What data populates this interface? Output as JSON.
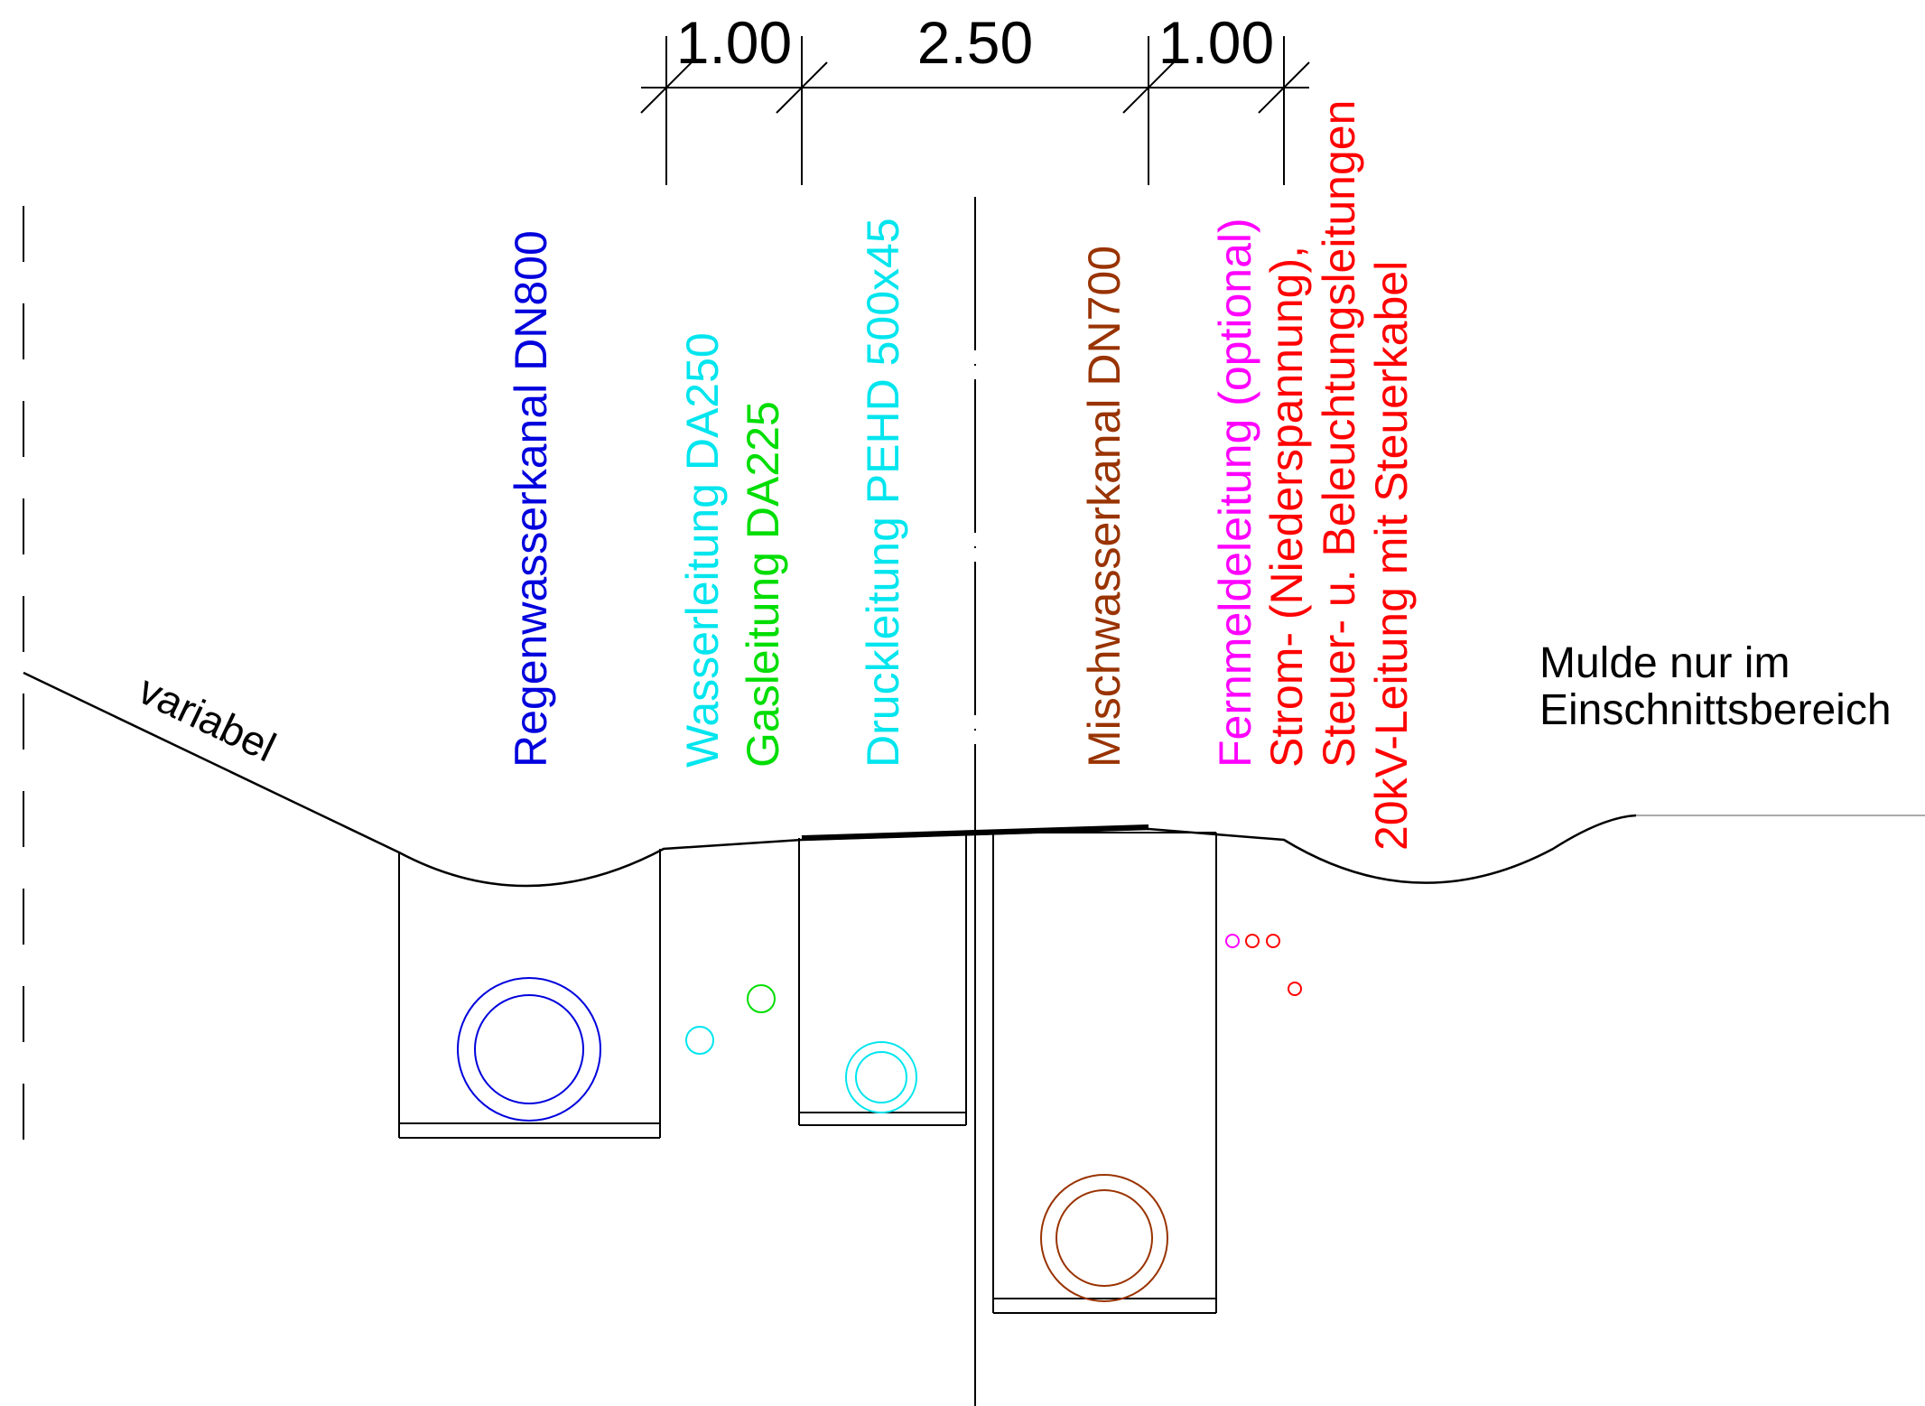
{
  "dimensions": {
    "d1": "1.00",
    "d2": "2.50",
    "d3": "1.00"
  },
  "labels": {
    "regenwasser": "Regenwasserkanal DN800",
    "wasser": "Wasserleitung DA250",
    "gas": "Gasleitung DA225",
    "druck": "Druckleitung PEHD 500x45",
    "misch": "Mischwasserkanal DN700",
    "fernmelde": "Fernmeldeleitung (optional)",
    "strom": "Strom- (Niederspannung),",
    "steuer": "Steuer- u. Beleuchtungsleitungen",
    "kv": "20kV-Leitung mit Steuerkabel",
    "variabel": "variabel",
    "mulde_line1": "Mulde nur im",
    "mulde_line2": "Einschnittsbereich"
  },
  "colors": {
    "regenwasser": "#0000dd",
    "wasser": "#00e5ee",
    "gas": "#00dd00",
    "druck": "#00e5ee",
    "misch": "#993300",
    "fernmelde": "#ff00ff",
    "strom": "#ff0000",
    "line": "#000000"
  }
}
